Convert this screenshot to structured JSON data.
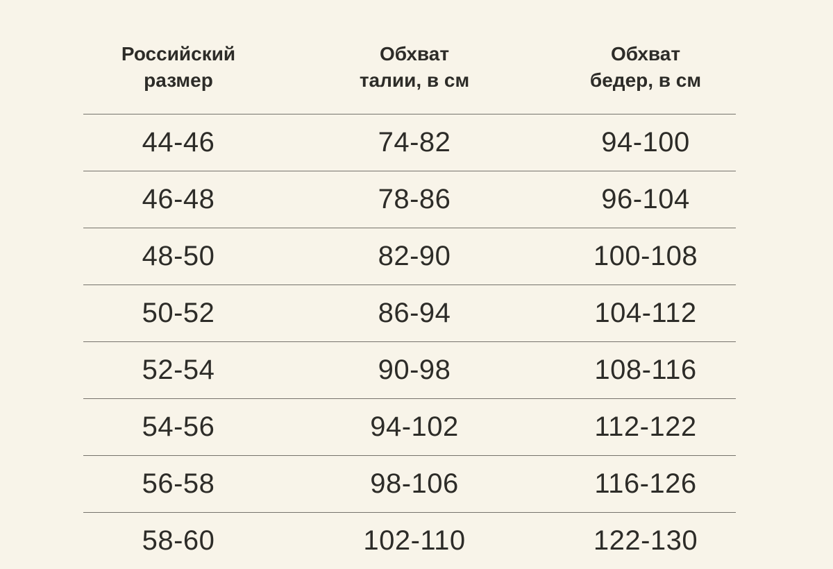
{
  "colors": {
    "background": "#f8f4e9",
    "text": "#2d2c28",
    "divider": "#75726b"
  },
  "chart_data": {
    "type": "table",
    "title": "",
    "columns": [
      "Российский размер",
      "Обхват талии, в см",
      "Обхват бедер, в см"
    ],
    "column_lines": [
      [
        "Российский",
        "размер"
      ],
      [
        "Обхват",
        "талии, в см"
      ],
      [
        "Обхват",
        "бедер, в см"
      ]
    ],
    "rows": [
      [
        "44-46",
        "74-82",
        "94-100"
      ],
      [
        "46-48",
        "78-86",
        "96-104"
      ],
      [
        "48-50",
        "82-90",
        "100-108"
      ],
      [
        "50-52",
        "86-94",
        "104-112"
      ],
      [
        "52-54",
        "90-98",
        "108-116"
      ],
      [
        "54-56",
        "94-102",
        "112-122"
      ],
      [
        "56-58",
        "98-106",
        "116-126"
      ],
      [
        "58-60",
        "102-110",
        "122-130"
      ]
    ],
    "layout": {
      "grid": "horizontal-dividers-only",
      "header_bold": true,
      "rows_clipped_at_bottom": true
    }
  }
}
